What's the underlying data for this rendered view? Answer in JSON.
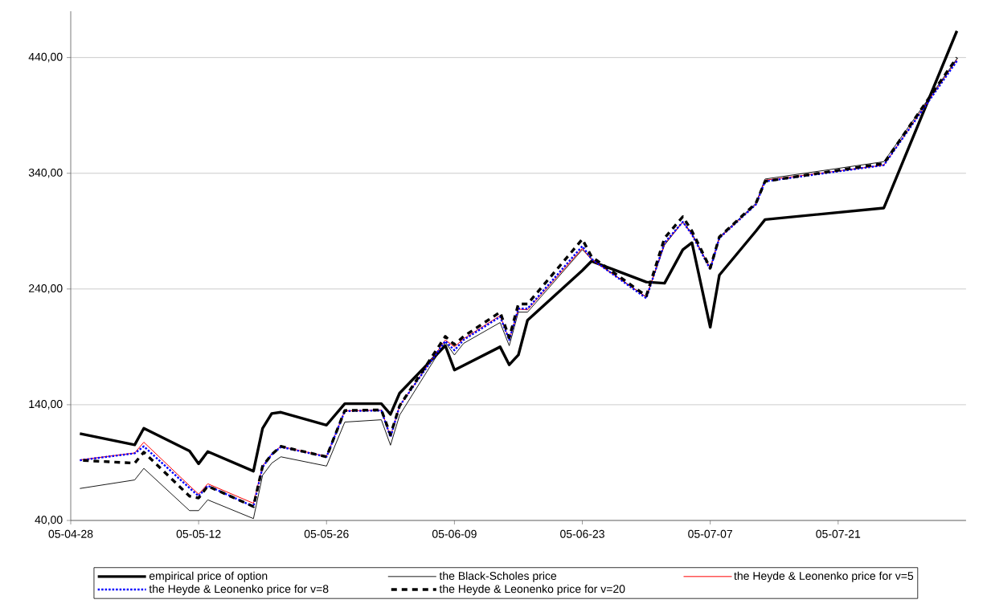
{
  "chart_data": {
    "type": "line",
    "x": [
      "2005-04-29",
      "2005-05-05",
      "2005-05-06",
      "2005-05-11",
      "2005-05-12",
      "2005-05-13",
      "2005-05-18",
      "2005-05-19",
      "2005-05-20",
      "2005-05-21",
      "2005-05-26",
      "2005-05-28",
      "2005-06-01",
      "2005-06-02",
      "2005-06-03",
      "2005-06-08",
      "2005-06-09",
      "2005-06-10",
      "2005-06-14",
      "2005-06-15",
      "2005-06-16",
      "2005-06-17",
      "2005-06-23",
      "2005-06-24",
      "2005-06-30",
      "2005-07-02",
      "2005-07-04",
      "2005-07-05",
      "2005-07-07",
      "2005-07-08",
      "2005-07-12",
      "2005-07-13",
      "2005-07-26",
      "2005-08-03"
    ],
    "series": [
      {
        "name": "empirical price of option",
        "color": "#000000",
        "line_style": "solid",
        "values": [
          115,
          105.3,
          119.6,
          100,
          89,
          99.5,
          82.6,
          119.6,
          132.4,
          133.5,
          122.4,
          140.9,
          140.9,
          131.7,
          150,
          191,
          170,
          174,
          190,
          174.5,
          183,
          213,
          256,
          264,
          246,
          245,
          274,
          280,
          207,
          252,
          290,
          300,
          310,
          463
        ]
      },
      {
        "name": "the Black-Scholes price",
        "color": "#000000",
        "line_style": "solid",
        "values": [
          67.6,
          75,
          85,
          48.5,
          48.5,
          57.8,
          41.6,
          79,
          89.5,
          95,
          87,
          125,
          127,
          105,
          131,
          194,
          183,
          193,
          211,
          191,
          220,
          220,
          274,
          266,
          233,
          278,
          298,
          288,
          258,
          285,
          314,
          335,
          350,
          439
        ]
      },
      {
        "name": "the Heyde & Leonenko price for v=5",
        "color": "#ff0000",
        "line_style": "solid",
        "values": [
          92.3,
          98.3,
          107.6,
          70,
          62.6,
          71.7,
          54.8,
          87,
          97.6,
          104,
          95.3,
          134.7,
          135.3,
          112.7,
          139,
          196,
          190,
          197,
          217,
          196,
          222.6,
          222,
          275,
          265.5,
          233,
          279,
          298,
          287,
          258,
          284,
          313,
          334,
          347,
          438
        ]
      },
      {
        "name": "the Heyde & Leonenko price for v=8",
        "color": "#0000ff",
        "line_style": "dotted",
        "values": [
          92,
          98,
          104,
          68,
          61,
          70,
          52,
          86,
          97,
          103.5,
          95,
          134.5,
          135,
          112,
          139,
          195,
          187,
          196,
          216,
          196,
          223,
          223,
          277,
          266,
          232,
          280,
          298,
          287,
          257,
          284,
          313,
          333,
          347,
          437
        ]
      },
      {
        "name": "the Heyde & Leonenko price for v=20",
        "color": "#000000",
        "line_style": "dashed",
        "values": [
          92,
          89.5,
          99,
          61,
          59.4,
          69.7,
          52,
          87,
          97,
          104,
          95,
          135,
          135.5,
          114,
          139,
          199,
          192,
          199,
          220,
          198,
          227,
          227,
          283,
          268,
          234,
          284,
          302.5,
          290,
          258,
          285,
          314,
          333,
          348.5,
          440
        ]
      }
    ],
    "xlim": [
      "2005-04-28",
      "2005-08-04"
    ],
    "xticks": [
      {
        "value": "2005-04-28",
        "label": "05-04-28"
      },
      {
        "value": "2005-05-12",
        "label": "05-05-12"
      },
      {
        "value": "2005-05-26",
        "label": "05-05-26"
      },
      {
        "value": "2005-06-09",
        "label": "05-06-09"
      },
      {
        "value": "2005-06-23",
        "label": "05-06-23"
      },
      {
        "value": "2005-07-07",
        "label": "05-07-07"
      },
      {
        "value": "2005-07-21",
        "label": "05-07-21"
      }
    ],
    "ylim": [
      40,
      480
    ],
    "yticks": [
      {
        "value": 40,
        "label": "40,00"
      },
      {
        "value": 140,
        "label": "140,00"
      },
      {
        "value": 240,
        "label": "240,00"
      },
      {
        "value": 340,
        "label": "340,00"
      },
      {
        "value": 440,
        "label": "440,00"
      }
    ],
    "grid": "y",
    "legend": "bottom",
    "marker": "none"
  }
}
